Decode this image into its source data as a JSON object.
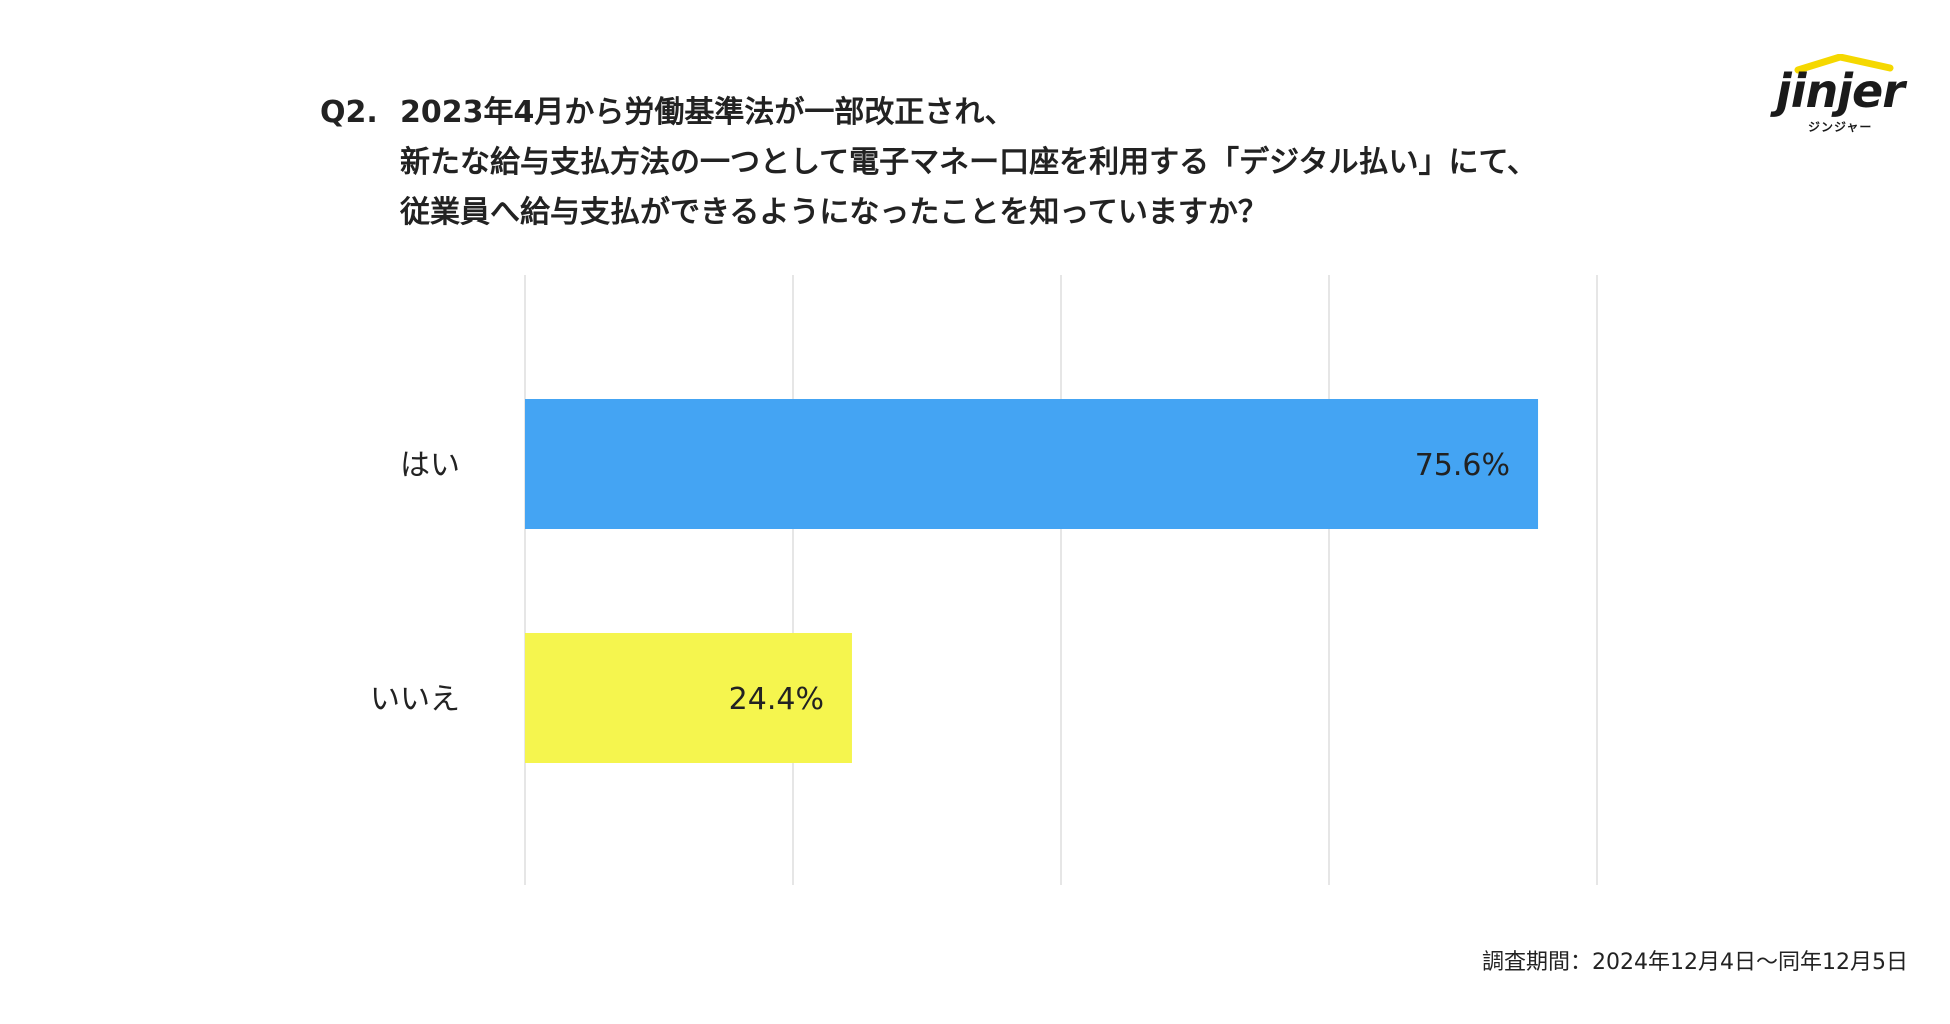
{
  "question": {
    "number": "Q2.",
    "lines": [
      "2023年4月から労働基準法が一部改正され、",
      "新たな給与支払方法の一つとして電子マネー口座を利用する「デジタル払い」にて、",
      "従業員へ給与支払ができるようになったことを知っていますか？"
    ]
  },
  "logo": {
    "word": "jinjer",
    "kana": "ジンジャー",
    "accent_color": "#F5D800"
  },
  "footnote": "調査期間：2024年12月4日〜同年12月5日",
  "chart_data": {
    "type": "bar",
    "orientation": "horizontal",
    "categories": [
      "はい",
      "いいえ"
    ],
    "values": [
      75.6,
      24.4
    ],
    "value_labels": [
      "75.6%",
      "24.4%"
    ],
    "colors": [
      "#44A4F3",
      "#F5F54E"
    ],
    "xlim": [
      0,
      80
    ],
    "grid": true,
    "legend": "none"
  }
}
